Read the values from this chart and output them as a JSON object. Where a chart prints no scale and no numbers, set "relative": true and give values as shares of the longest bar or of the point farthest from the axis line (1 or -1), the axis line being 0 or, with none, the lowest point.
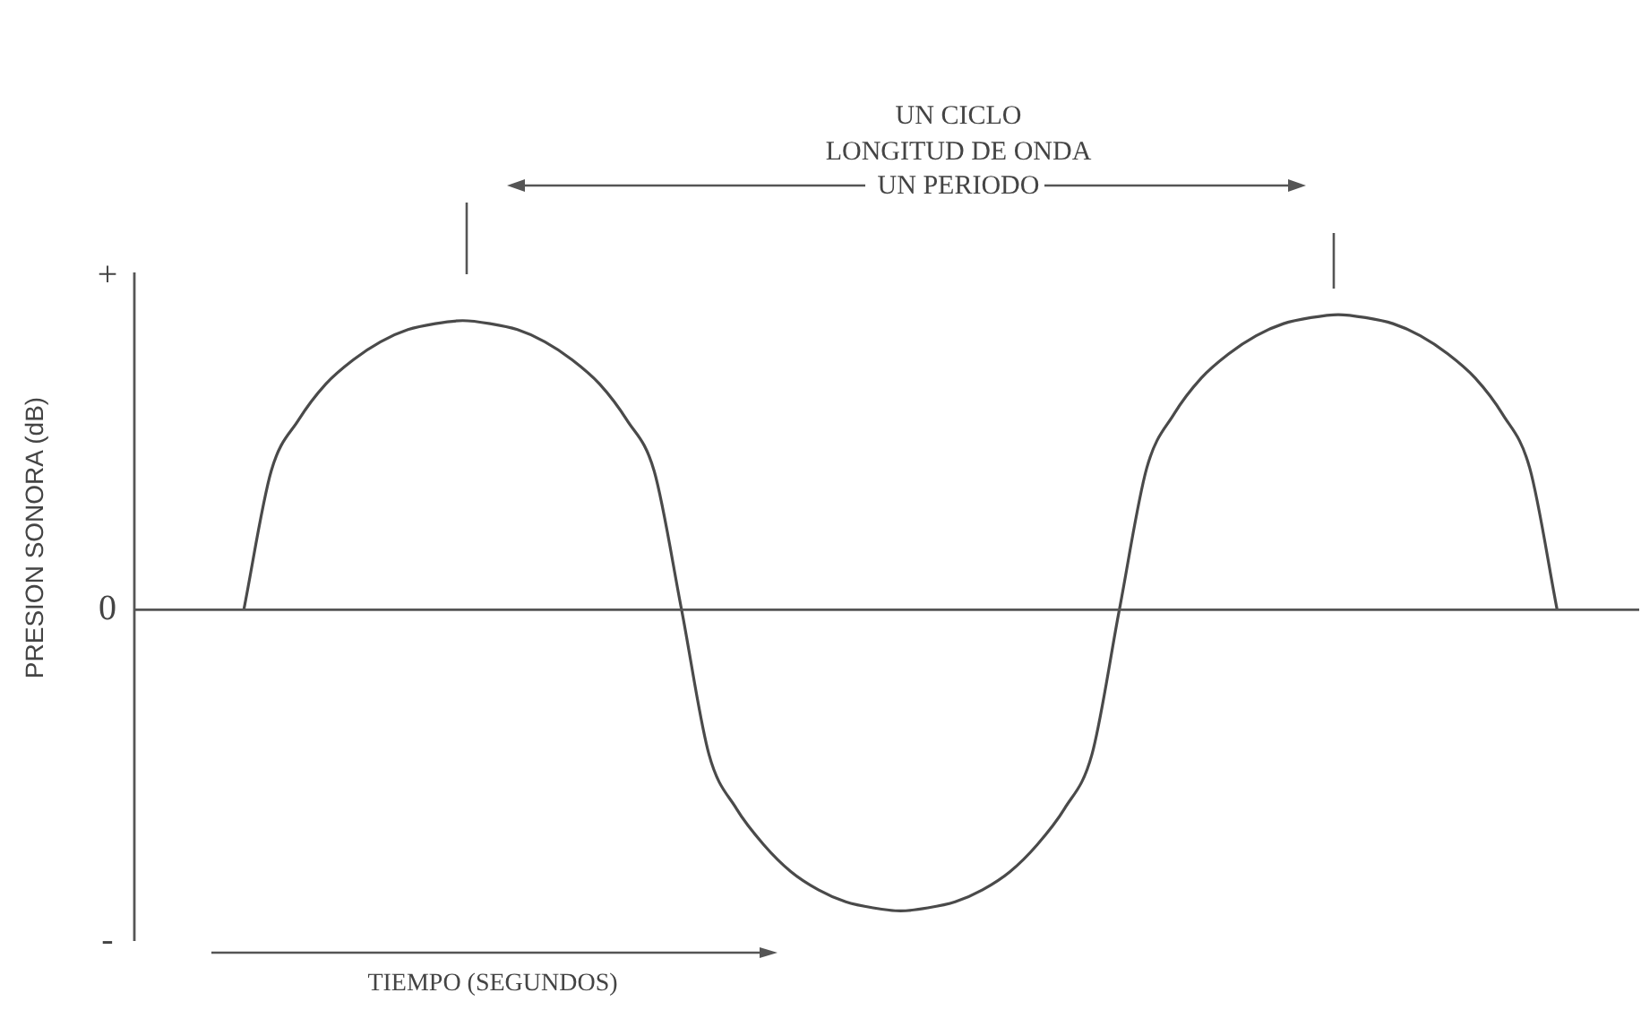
{
  "chart_data": {
    "type": "line",
    "relative": true,
    "xlabel": "TIEMPO (SEGUNDOS)",
    "ylabel": "PRESION SONORA (dB)",
    "legend": false,
    "marker": "none",
    "line_style": "solid",
    "annotations": [
      "+",
      "0",
      "-",
      "UN CICLO",
      "LONGITUD DE ONDA",
      "UN PERIODO"
    ],
    "categories": [
      null,
      null,
      null,
      null,
      null,
      null,
      null,
      null,
      null,
      null,
      null,
      null,
      null,
      null,
      null,
      null,
      null,
      null,
      null,
      null,
      null,
      null,
      null,
      null,
      null,
      null,
      null,
      null,
      null,
      null,
      null,
      null,
      null,
      null,
      null,
      null,
      null,
      null,
      null,
      null,
      null,
      null,
      null,
      null,
      null,
      null,
      null,
      null,
      null,
      null,
      null,
      null,
      null,
      null,
      null,
      null
    ],
    "series": [
      {
        "color": "#4a4a4a",
        "values": [
          null,
          null,
          null,
          null,
          0,
          0.46,
          0.63,
          0.75,
          0.83,
          0.89,
          0.93,
          0.95,
          0.96,
          0.95,
          0.93,
          0.89,
          0.83,
          0.75,
          0.63,
          0.46,
          0,
          -0.48,
          -0.66,
          -0.78,
          -0.87,
          -0.93,
          -0.97,
          -0.99,
          -1,
          -0.99,
          -0.97,
          -0.93,
          -0.87,
          -0.78,
          -0.66,
          -0.48,
          0,
          0.47,
          0.65,
          0.77,
          0.85,
          0.91,
          0.95,
          0.97,
          0.98,
          0.97,
          0.95,
          0.91,
          0.85,
          0.77,
          0.65,
          0.47,
          0,
          null,
          null,
          null
        ]
      }
    ]
  }
}
